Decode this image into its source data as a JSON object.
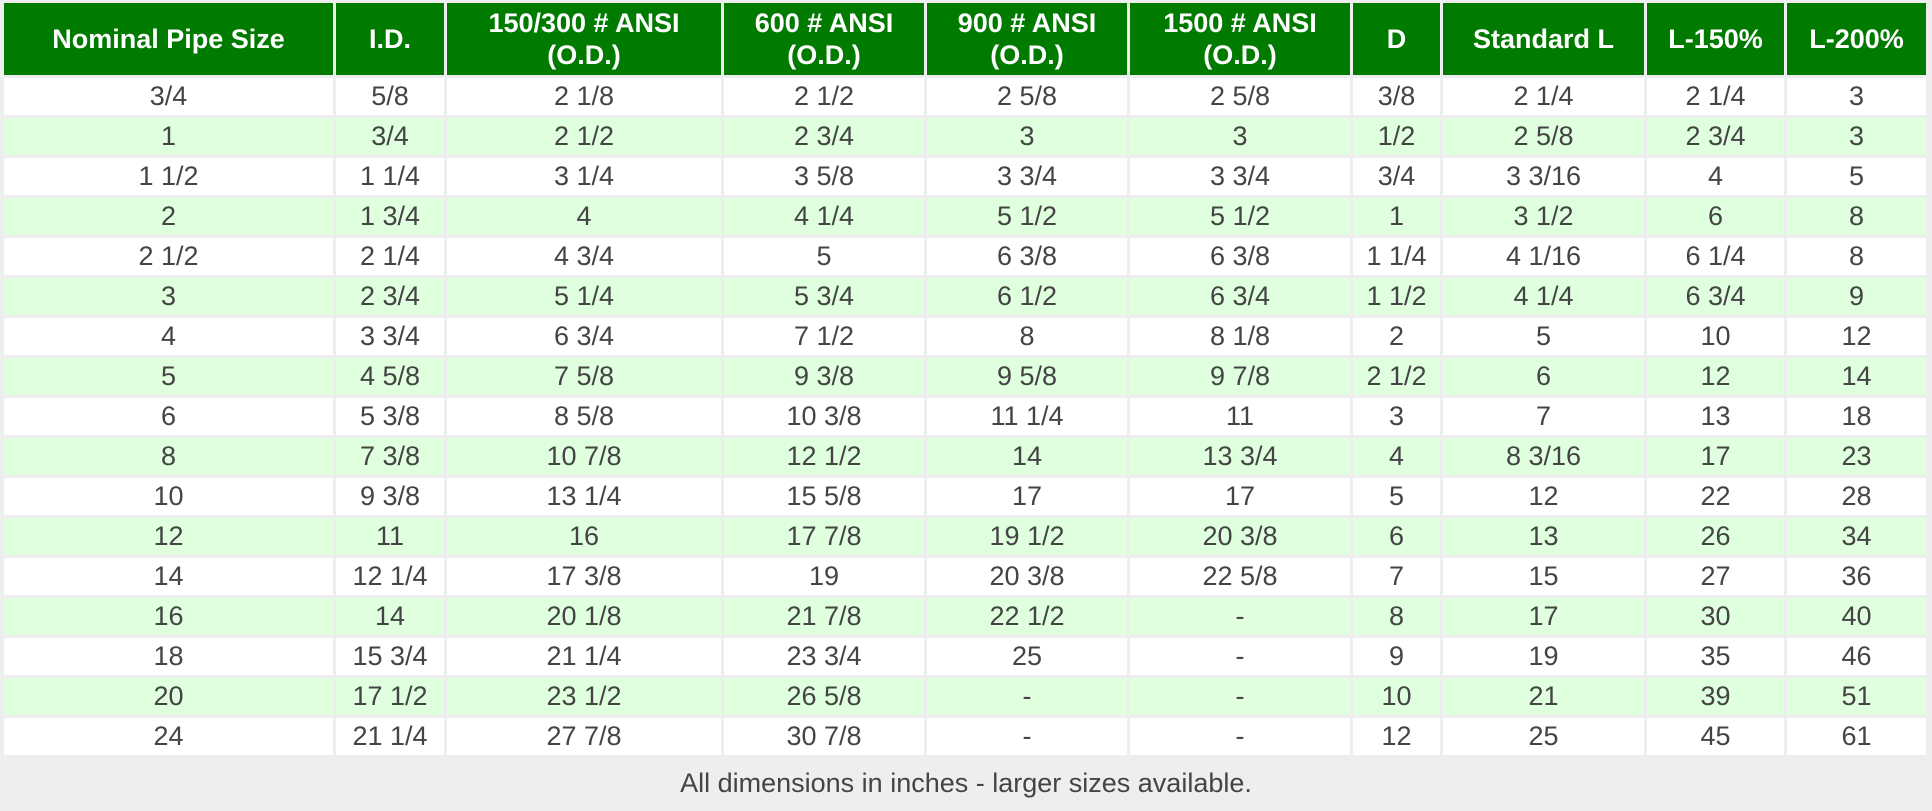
{
  "table": {
    "columns": [
      "Nominal Pipe Size",
      "I.D.",
      "150/300 # ANSI\n(O.D.)",
      "600 # ANSI\n(O.D.)",
      "900 # ANSI\n(O.D.)",
      "1500 # ANSI\n(O.D.)",
      "D",
      "Standard L",
      "L-150%",
      "L-200%"
    ],
    "rows": [
      [
        "3/4",
        "5/8",
        "2 1/8",
        "2 1/2",
        "2 5/8",
        "2 5/8",
        "3/8",
        "2 1/4",
        "2 1/4",
        "3"
      ],
      [
        "1",
        "3/4",
        "2 1/2",
        "2 3/4",
        "3",
        "3",
        "1/2",
        "2 5/8",
        "2 3/4",
        "3"
      ],
      [
        "1 1/2",
        "1 1/4",
        "3 1/4",
        "3 5/8",
        "3 3/4",
        "3 3/4",
        "3/4",
        "3 3/16",
        "4",
        "5"
      ],
      [
        "2",
        "1 3/4",
        "4",
        "4 1/4",
        "5 1/2",
        "5 1/2",
        "1",
        "3 1/2",
        "6",
        "8"
      ],
      [
        "2 1/2",
        "2 1/4",
        "4 3/4",
        "5",
        "6 3/8",
        "6 3/8",
        "1 1/4",
        "4 1/16",
        "6 1/4",
        "8"
      ],
      [
        "3",
        "2 3/4",
        "5 1/4",
        "5 3/4",
        "6 1/2",
        "6 3/4",
        "1 1/2",
        "4 1/4",
        "6 3/4",
        "9"
      ],
      [
        "4",
        "3 3/4",
        "6 3/4",
        "7 1/2",
        "8",
        "8 1/8",
        "2",
        "5",
        "10",
        "12"
      ],
      [
        "5",
        "4 5/8",
        "7 5/8",
        "9 3/8",
        "9 5/8",
        "9 7/8",
        "2 1/2",
        "6",
        "12",
        "14"
      ],
      [
        "6",
        "5 3/8",
        "8 5/8",
        "10 3/8",
        "11 1/4",
        "11",
        "3",
        "7",
        "13",
        "18"
      ],
      [
        "8",
        "7 3/8",
        "10 7/8",
        "12 1/2",
        "14",
        "13 3/4",
        "4",
        "8 3/16",
        "17",
        "23"
      ],
      [
        "10",
        "9 3/8",
        "13 1/4",
        "15 5/8",
        "17",
        "17",
        "5",
        "12",
        "22",
        "28"
      ],
      [
        "12",
        "11",
        "16",
        "17 7/8",
        "19 1/2",
        "20 3/8",
        "6",
        "13",
        "26",
        "34"
      ],
      [
        "14",
        "12 1/4",
        "17 3/8",
        "19",
        "20 3/8",
        "22 5/8",
        "7",
        "15",
        "27",
        "36"
      ],
      [
        "16",
        "14",
        "20 1/8",
        "21 7/8",
        "22 1/2",
        "-",
        "8",
        "17",
        "30",
        "40"
      ],
      [
        "18",
        "15 3/4",
        "21 1/4",
        "23 3/4",
        "25",
        "-",
        "9",
        "19",
        "35",
        "46"
      ],
      [
        "20",
        "17 1/2",
        "23 1/2",
        "26 5/8",
        "-",
        "-",
        "10",
        "21",
        "39",
        "51"
      ],
      [
        "24",
        "21 1/4",
        "27 7/8",
        "30 7/8",
        "-",
        "-",
        "12",
        "25",
        "45",
        "61"
      ]
    ]
  },
  "footer": "All dimensions in inches - larger sizes available."
}
